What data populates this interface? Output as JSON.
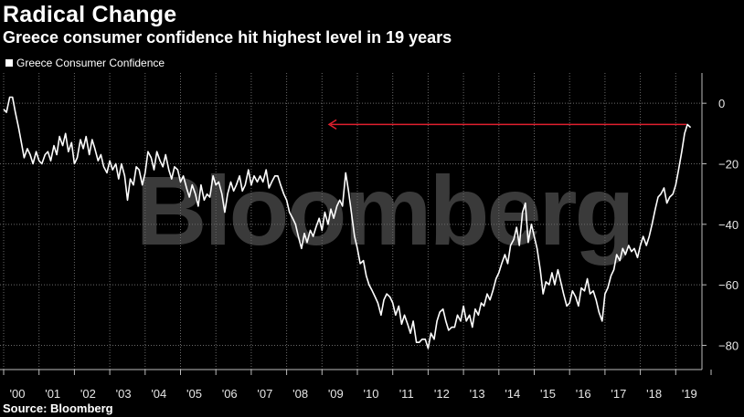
{
  "title": "Radical Change",
  "subtitle": "Greece consumer confidence hit highest level in 19 years",
  "source": "Source: Bloomberg",
  "watermark": "Bloomberg",
  "chart_data": {
    "type": "line",
    "title": "Radical Change",
    "subtitle": "Greece consumer confidence hit highest level in 19 years",
    "xlabel": "",
    "ylabel": "",
    "legend": [
      "Greece Consumer Confidence"
    ],
    "legend_position": "top-left",
    "x_ticks": [
      "'00",
      "'01",
      "'02",
      "'03",
      "'04",
      "'05",
      "'06",
      "'07",
      "'08",
      "'09",
      "'10",
      "'11",
      "'12",
      "'13",
      "'14",
      "'15",
      "'16",
      "'17",
      "'18",
      "'19"
    ],
    "y_ticks": [
      0,
      -20,
      -40,
      -60,
      -80
    ],
    "ylim": [
      -88,
      10
    ],
    "xlim": [
      2000,
      2019.8
    ],
    "grid": true,
    "annotation": {
      "type": "arrow",
      "direction": "left",
      "color": "#e0202e",
      "y_value": -7,
      "x_from": 2019.3,
      "x_to": 2009.2
    },
    "series": [
      {
        "name": "Greece Consumer Confidence",
        "color": "#ffffff",
        "points": [
          [
            2000.0,
            -2
          ],
          [
            2000.08,
            -3
          ],
          [
            2000.17,
            2
          ],
          [
            2000.25,
            2
          ],
          [
            2000.33,
            -3
          ],
          [
            2000.42,
            -8
          ],
          [
            2000.5,
            -13
          ],
          [
            2000.58,
            -18
          ],
          [
            2000.67,
            -15
          ],
          [
            2000.75,
            -17
          ],
          [
            2000.83,
            -20
          ],
          [
            2000.92,
            -16
          ],
          [
            2001.0,
            -19
          ],
          [
            2001.08,
            -20
          ],
          [
            2001.17,
            -17
          ],
          [
            2001.25,
            -16
          ],
          [
            2001.33,
            -19
          ],
          [
            2001.42,
            -14
          ],
          [
            2001.5,
            -17
          ],
          [
            2001.58,
            -11
          ],
          [
            2001.67,
            -14
          ],
          [
            2001.75,
            -10
          ],
          [
            2001.83,
            -16
          ],
          [
            2001.92,
            -13
          ],
          [
            2002.0,
            -20
          ],
          [
            2002.08,
            -18
          ],
          [
            2002.17,
            -12
          ],
          [
            2002.25,
            -15
          ],
          [
            2002.33,
            -11
          ],
          [
            2002.42,
            -17
          ],
          [
            2002.5,
            -12
          ],
          [
            2002.58,
            -15
          ],
          [
            2002.67,
            -19
          ],
          [
            2002.75,
            -17
          ],
          [
            2002.83,
            -21
          ],
          [
            2002.92,
            -23
          ],
          [
            2003.0,
            -19
          ],
          [
            2003.08,
            -22
          ],
          [
            2003.17,
            -20
          ],
          [
            2003.25,
            -25
          ],
          [
            2003.33,
            -20
          ],
          [
            2003.42,
            -24
          ],
          [
            2003.5,
            -32
          ],
          [
            2003.58,
            -25
          ],
          [
            2003.67,
            -27
          ],
          [
            2003.75,
            -21
          ],
          [
            2003.83,
            -22
          ],
          [
            2003.92,
            -27
          ],
          [
            2004.0,
            -23
          ],
          [
            2004.08,
            -16
          ],
          [
            2004.17,
            -18
          ],
          [
            2004.25,
            -22
          ],
          [
            2004.33,
            -16
          ],
          [
            2004.42,
            -19
          ],
          [
            2004.5,
            -21
          ],
          [
            2004.58,
            -17
          ],
          [
            2004.67,
            -22
          ],
          [
            2004.75,
            -25
          ],
          [
            2004.83,
            -21
          ],
          [
            2004.92,
            -22
          ],
          [
            2005.0,
            -26
          ],
          [
            2005.08,
            -24
          ],
          [
            2005.17,
            -28
          ],
          [
            2005.25,
            -31
          ],
          [
            2005.33,
            -27
          ],
          [
            2005.42,
            -30
          ],
          [
            2005.5,
            -34
          ],
          [
            2005.58,
            -27
          ],
          [
            2005.67,
            -32
          ],
          [
            2005.75,
            -30
          ],
          [
            2005.83,
            -31
          ],
          [
            2005.92,
            -24
          ],
          [
            2006.0,
            -27
          ],
          [
            2006.08,
            -26
          ],
          [
            2006.17,
            -30
          ],
          [
            2006.25,
            -36
          ],
          [
            2006.33,
            -30
          ],
          [
            2006.42,
            -26
          ],
          [
            2006.5,
            -29
          ],
          [
            2006.58,
            -27
          ],
          [
            2006.67,
            -24
          ],
          [
            2006.75,
            -29
          ],
          [
            2006.83,
            -27
          ],
          [
            2006.92,
            -22
          ],
          [
            2007.0,
            -27
          ],
          [
            2007.08,
            -24
          ],
          [
            2007.17,
            -26
          ],
          [
            2007.25,
            -24
          ],
          [
            2007.33,
            -26
          ],
          [
            2007.42,
            -22
          ],
          [
            2007.5,
            -28
          ],
          [
            2007.58,
            -26
          ],
          [
            2007.67,
            -24
          ],
          [
            2007.75,
            -24
          ],
          [
            2007.83,
            -27
          ],
          [
            2007.92,
            -30
          ],
          [
            2008.0,
            -32
          ],
          [
            2008.08,
            -36
          ],
          [
            2008.17,
            -38
          ],
          [
            2008.25,
            -40
          ],
          [
            2008.33,
            -44
          ],
          [
            2008.42,
            -48
          ],
          [
            2008.5,
            -43
          ],
          [
            2008.58,
            -46
          ],
          [
            2008.67,
            -42
          ],
          [
            2008.75,
            -44
          ],
          [
            2008.83,
            -41
          ],
          [
            2008.92,
            -38
          ],
          [
            2009.0,
            -42
          ],
          [
            2009.08,
            -36
          ],
          [
            2009.17,
            -40
          ],
          [
            2009.25,
            -35
          ],
          [
            2009.33,
            -38
          ],
          [
            2009.42,
            -34
          ],
          [
            2009.5,
            -32
          ],
          [
            2009.58,
            -34
          ],
          [
            2009.67,
            -23
          ],
          [
            2009.75,
            -29
          ],
          [
            2009.83,
            -36
          ],
          [
            2009.92,
            -44
          ],
          [
            2010.0,
            -48
          ],
          [
            2010.08,
            -53
          ],
          [
            2010.17,
            -52
          ],
          [
            2010.25,
            -57
          ],
          [
            2010.33,
            -60
          ],
          [
            2010.42,
            -62
          ],
          [
            2010.5,
            -64
          ],
          [
            2010.58,
            -66
          ],
          [
            2010.67,
            -70
          ],
          [
            2010.75,
            -65
          ],
          [
            2010.83,
            -63
          ],
          [
            2010.92,
            -64
          ],
          [
            2011.0,
            -66
          ],
          [
            2011.08,
            -70
          ],
          [
            2011.17,
            -67
          ],
          [
            2011.25,
            -73
          ],
          [
            2011.33,
            -70
          ],
          [
            2011.42,
            -73
          ],
          [
            2011.5,
            -76
          ],
          [
            2011.58,
            -72
          ],
          [
            2011.67,
            -79
          ],
          [
            2011.75,
            -79
          ],
          [
            2011.83,
            -78
          ],
          [
            2011.92,
            -78
          ],
          [
            2012.0,
            -81
          ],
          [
            2012.08,
            -76
          ],
          [
            2012.17,
            -78
          ],
          [
            2012.25,
            -72
          ],
          [
            2012.33,
            -69
          ],
          [
            2012.42,
            -68
          ],
          [
            2012.5,
            -72
          ],
          [
            2012.58,
            -75
          ],
          [
            2012.67,
            -74
          ],
          [
            2012.75,
            -74
          ],
          [
            2012.83,
            -70
          ],
          [
            2012.92,
            -72
          ],
          [
            2013.0,
            -67
          ],
          [
            2013.08,
            -72
          ],
          [
            2013.17,
            -70
          ],
          [
            2013.25,
            -74
          ],
          [
            2013.33,
            -68
          ],
          [
            2013.42,
            -70
          ],
          [
            2013.5,
            -66
          ],
          [
            2013.58,
            -67
          ],
          [
            2013.67,
            -63
          ],
          [
            2013.75,
            -65
          ],
          [
            2013.83,
            -62
          ],
          [
            2013.92,
            -58
          ],
          [
            2014.0,
            -56
          ],
          [
            2014.08,
            -53
          ],
          [
            2014.17,
            -50
          ],
          [
            2014.25,
            -53
          ],
          [
            2014.33,
            -47
          ],
          [
            2014.42,
            -45
          ],
          [
            2014.5,
            -41
          ],
          [
            2014.58,
            -47
          ],
          [
            2014.67,
            -36
          ],
          [
            2014.75,
            -33
          ],
          [
            2014.83,
            -46
          ],
          [
            2014.92,
            -40
          ],
          [
            2015.0,
            -44
          ],
          [
            2015.08,
            -48
          ],
          [
            2015.17,
            -55
          ],
          [
            2015.25,
            -63
          ],
          [
            2015.33,
            -59
          ],
          [
            2015.42,
            -60
          ],
          [
            2015.5,
            -56
          ],
          [
            2015.58,
            -60
          ],
          [
            2015.67,
            -55
          ],
          [
            2015.75,
            -59
          ],
          [
            2015.83,
            -63
          ],
          [
            2015.92,
            -67
          ],
          [
            2016.0,
            -66
          ],
          [
            2016.08,
            -62
          ],
          [
            2016.17,
            -64
          ],
          [
            2016.25,
            -67
          ],
          [
            2016.33,
            -61
          ],
          [
            2016.42,
            -62
          ],
          [
            2016.5,
            -58
          ],
          [
            2016.58,
            -63
          ],
          [
            2016.67,
            -62
          ],
          [
            2016.75,
            -65
          ],
          [
            2016.83,
            -69
          ],
          [
            2016.92,
            -72
          ],
          [
            2017.0,
            -63
          ],
          [
            2017.08,
            -61
          ],
          [
            2017.17,
            -57
          ],
          [
            2017.25,
            -55
          ],
          [
            2017.33,
            -50
          ],
          [
            2017.42,
            -52
          ],
          [
            2017.5,
            -48
          ],
          [
            2017.58,
            -50
          ],
          [
            2017.67,
            -47
          ],
          [
            2017.75,
            -49
          ],
          [
            2017.83,
            -48
          ],
          [
            2017.92,
            -51
          ],
          [
            2018.0,
            -47
          ],
          [
            2018.08,
            -44
          ],
          [
            2018.17,
            -47
          ],
          [
            2018.25,
            -44
          ],
          [
            2018.33,
            -40
          ],
          [
            2018.42,
            -35
          ],
          [
            2018.5,
            -31
          ],
          [
            2018.58,
            -30
          ],
          [
            2018.67,
            -28
          ],
          [
            2018.75,
            -33
          ],
          [
            2018.83,
            -31
          ],
          [
            2018.92,
            -30
          ],
          [
            2019.0,
            -27
          ],
          [
            2019.08,
            -22
          ],
          [
            2019.17,
            -16
          ],
          [
            2019.25,
            -10
          ],
          [
            2019.33,
            -7
          ],
          [
            2019.42,
            -8
          ]
        ]
      }
    ]
  }
}
